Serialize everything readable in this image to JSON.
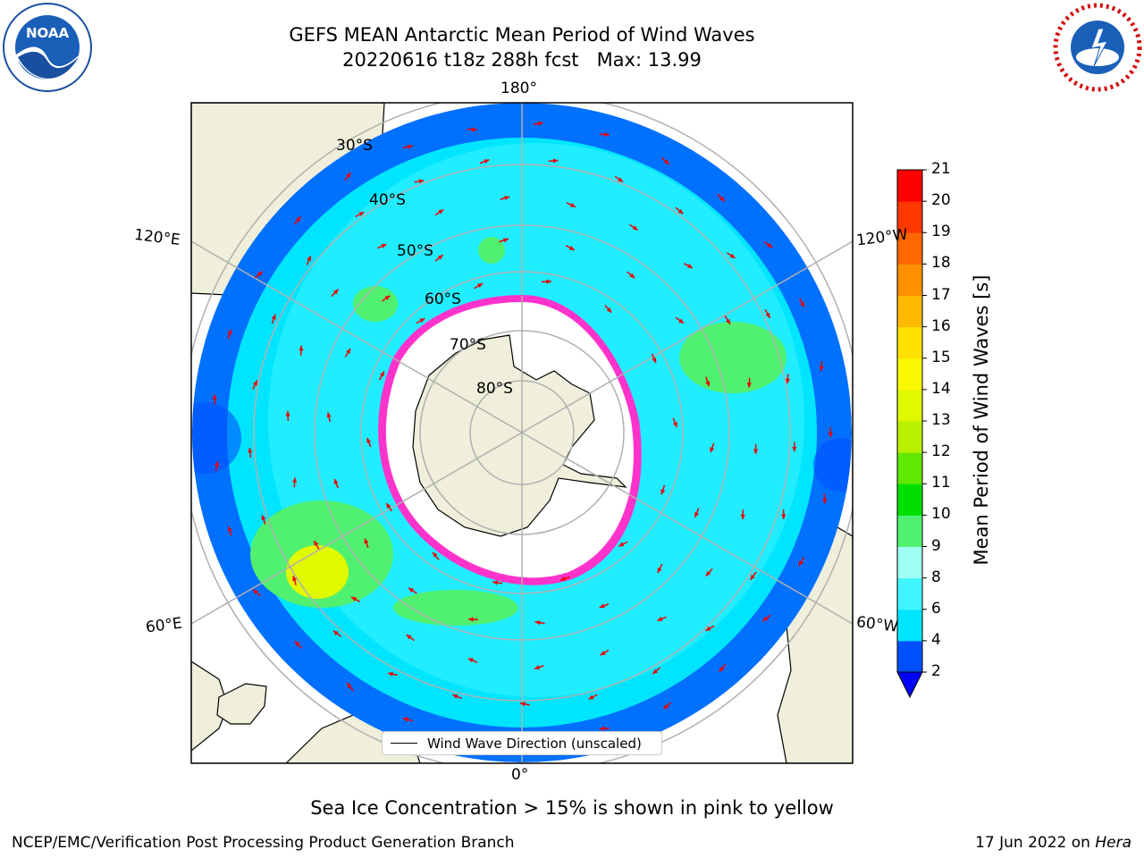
{
  "title_line1": "GEFS MEAN Antarctic Mean Period of Wind Waves",
  "title_line2": "20220616 t18z 288h fcst   Max: 13.99",
  "logos": {
    "left": "noara-logo",
    "right": "nws-logo"
  },
  "map": {
    "longitude_labels": {
      "top": "180°",
      "bottom": "0°",
      "upper_left": "120°E",
      "lower_left": "60°E",
      "upper_right": "120°W",
      "lower_right": "60°W"
    },
    "latitude_labels": [
      "30°S",
      "40°S",
      "50°S",
      "60°S",
      "70°S",
      "80°S"
    ],
    "legend_label": "Wind Wave Direction (unscaled)"
  },
  "colorbar": {
    "label": "Mean Period of Wind Waves [s]",
    "ticks": [
      "2",
      "4",
      "6",
      "8",
      "9",
      "10",
      "11",
      "12",
      "13",
      "14",
      "15",
      "16",
      "17",
      "18",
      "19",
      "20",
      "21"
    ],
    "colors": [
      "#0050ff",
      "#00e5ff",
      "#40f5ff",
      "#a0fff5",
      "#50f070",
      "#00e000",
      "#60e800",
      "#b8f000",
      "#e0f800",
      "#f8f800",
      "#ffe000",
      "#ffb800",
      "#ff9000",
      "#ff6800",
      "#ff3800",
      "#ff0000"
    ],
    "under_color": "#0000ff"
  },
  "caption": "Sea Ice Concentration > 15% is shown in pink to yellow",
  "footer_left": "NCEP/EMC/Verification Post Processing Product Generation Branch",
  "footer_right_date": "17 Jun 2022 on ",
  "footer_right_machine": "Hera"
}
